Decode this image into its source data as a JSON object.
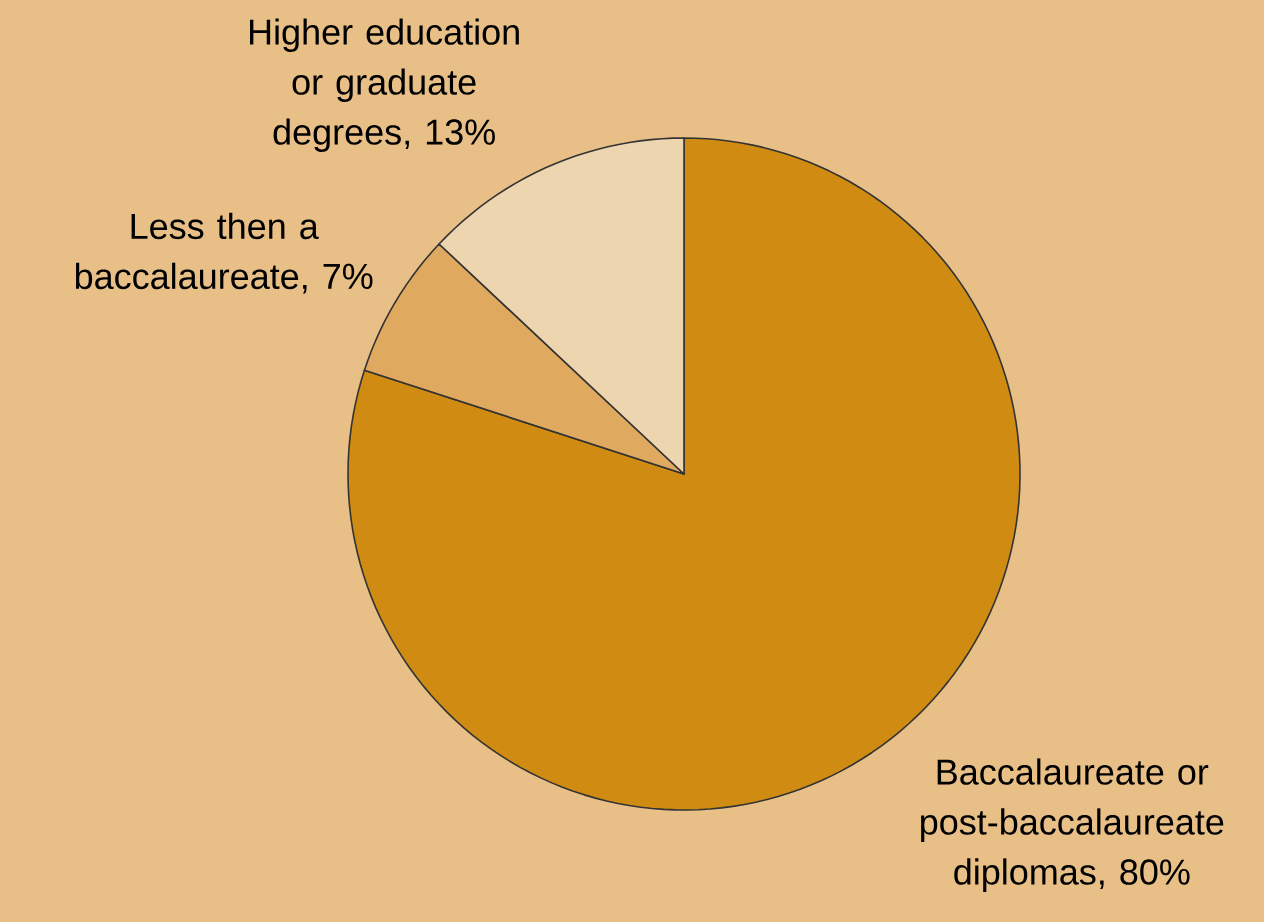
{
  "chart_data": {
    "type": "pie",
    "categories": [
      "Baccalaureate or post-baccalaureate diplomas, 80%",
      "Less then a baccalaureate, 7%",
      "Higher education or graduate degrees, 13%"
    ],
    "values": [
      80,
      7,
      13
    ],
    "colors": [
      "#d08b12",
      "#dfa95f",
      "#edd5b0"
    ]
  }
}
